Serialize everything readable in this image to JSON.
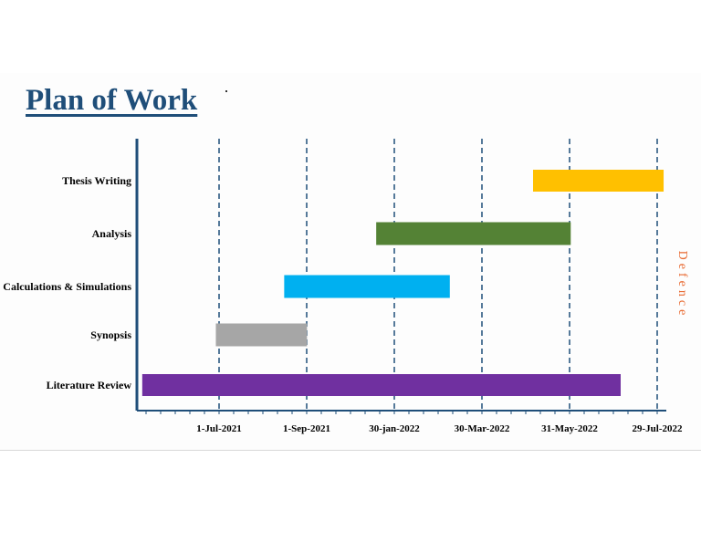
{
  "page": {
    "title": "Plan of Work",
    "side_label": "Defence"
  },
  "colors": {
    "title": "#1f4e79",
    "axis": "#1f4e79",
    "gridline": "#1f4e79",
    "side_label": "#e86a32"
  },
  "chart_data": {
    "type": "gantt",
    "title": "Plan of Work",
    "xlabel": "",
    "ylabel": "",
    "grid": "vertical dashed lines at each date tick",
    "x_ticks": [
      "1-Jul-2021",
      "1-Sep-2021",
      "30-jan-2022",
      "30-Mar-2022",
      "31-May-2022",
      "29-Jul-2022"
    ],
    "x_start": 0,
    "x_end": 6,
    "tasks": [
      {
        "name": "Literature Review",
        "start": 0.04,
        "end": 5.5,
        "color": "#7030a0"
      },
      {
        "name": "Synopsis",
        "start": 0.88,
        "end": 1.92,
        "color": "#a6a6a6"
      },
      {
        "name": "Calculations & Simulations",
        "start": 1.66,
        "end": 3.55,
        "color": "#00b0f0"
      },
      {
        "name": "Analysis",
        "start": 2.71,
        "end": 4.93,
        "color": "#548235"
      },
      {
        "name": "Thesis Writing",
        "start": 4.5,
        "end": 5.99,
        "color": "#ffc000"
      }
    ]
  }
}
